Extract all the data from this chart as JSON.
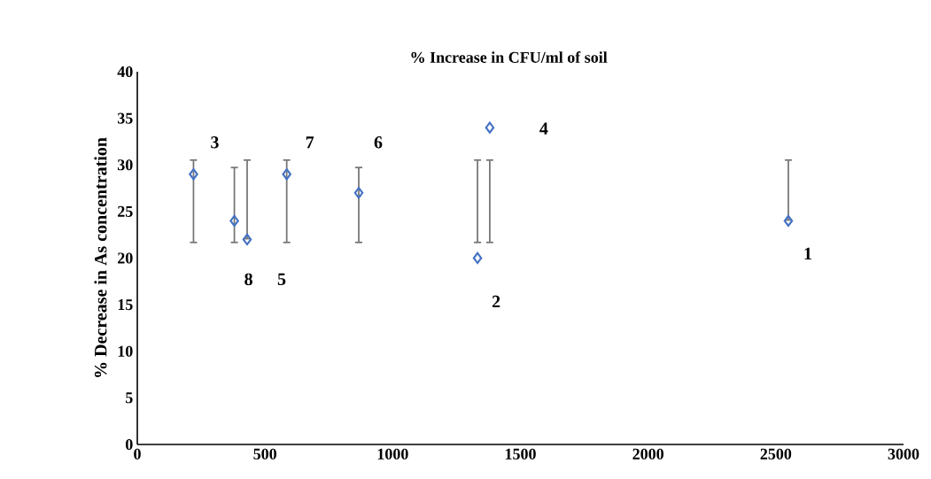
{
  "chart_data": {
    "type": "scatter",
    "title": "% Increase in CFU/ml of soil",
    "ylabel": "% Decrease in As concentration",
    "x": [
      220,
      380,
      430,
      585,
      867,
      1332,
      1380,
      2549
    ],
    "values": [
      29,
      24,
      22,
      29,
      27,
      20,
      34,
      24
    ],
    "errors": [
      [
        21.6,
        30.6
      ],
      [
        21.6,
        29.8
      ],
      [
        22,
        30.6
      ],
      [
        21.6,
        30.6
      ],
      [
        21.6,
        29.8
      ],
      [
        21.6,
        30.6
      ],
      [
        21.6,
        30.6
      ],
      [
        24,
        30.6
      ]
    ],
    "color": "#4472c4",
    "marker": "diamond",
    "xlim": [
      0,
      3000
    ],
    "xticks": [
      0,
      500,
      1000,
      1500,
      2000,
      2500,
      3000
    ],
    "ylim": [
      0,
      40
    ],
    "yticks": [
      0,
      5,
      10,
      15,
      20,
      25,
      30,
      35,
      40
    ],
    "annotations": [
      "3",
      "8",
      "5",
      "7",
      "6",
      "2",
      "4",
      "1"
    ]
  }
}
